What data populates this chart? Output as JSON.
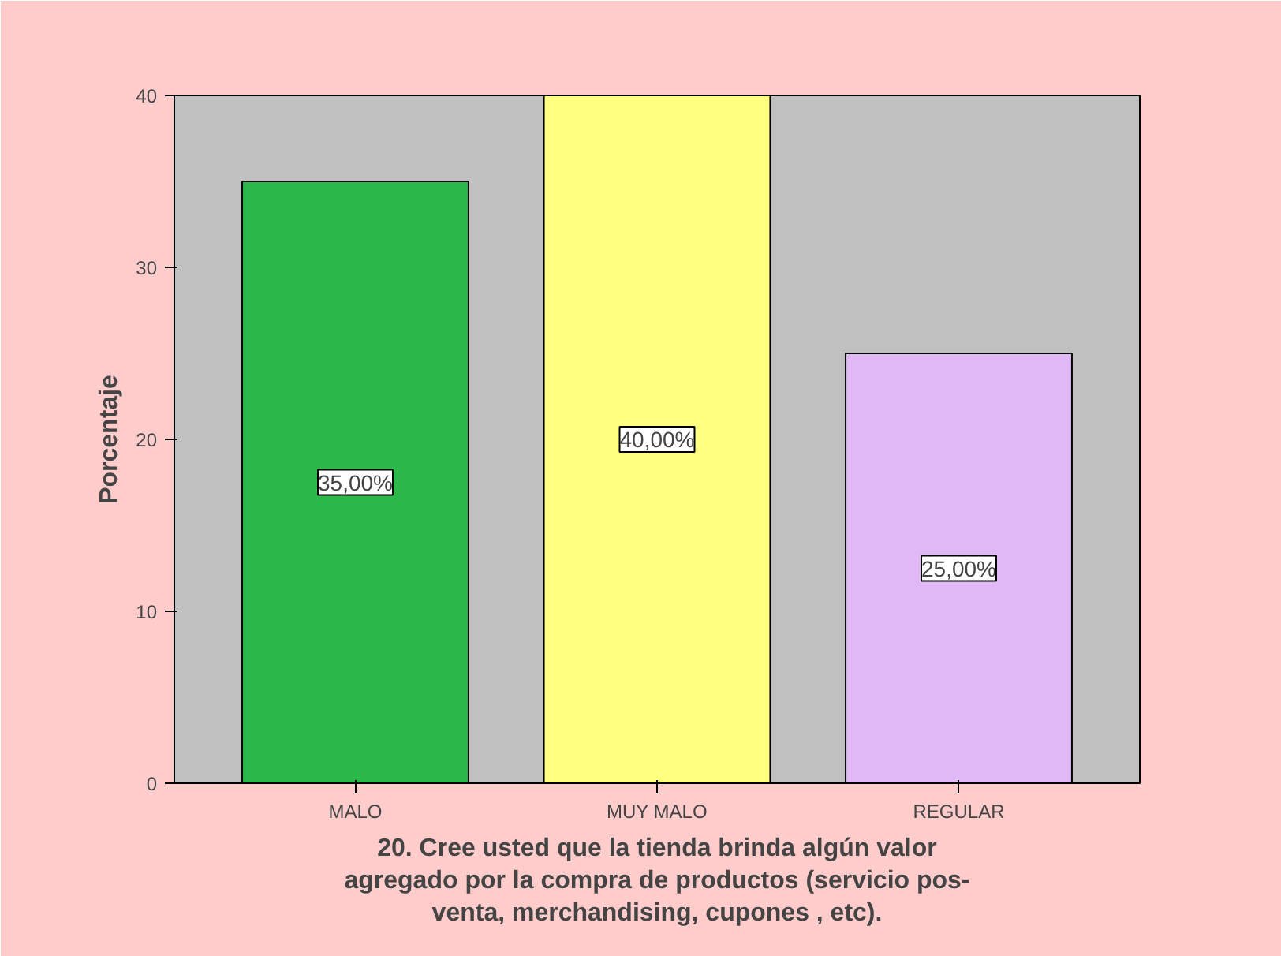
{
  "chart_data": {
    "type": "bar",
    "xlabel": "20. Cree usted que la tienda brinda algún valor agregado por la compra de productos (servicio pos- venta, merchandising, cupones , etc).",
    "ylabel": "Porcentaje",
    "categories": [
      "MALO",
      "MUY MALO",
      "REGULAR"
    ],
    "values": [
      35,
      40,
      25
    ],
    "colors": [
      "#2db84a",
      "#ffff80",
      "#dfb8f5"
    ],
    "value_labels": [
      "35,00%",
      "40,00%",
      "25,00%"
    ],
    "ylim": [
      0,
      40
    ],
    "yticks": [
      0,
      10,
      20,
      30,
      40
    ],
    "grid": false
  }
}
